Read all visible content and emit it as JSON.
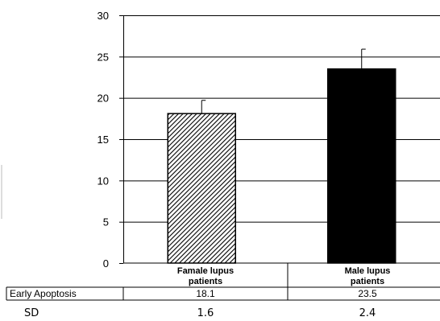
{
  "chart_data": {
    "type": "bar",
    "categories": [
      {
        "line1": "Famale lupus",
        "line2": "patients"
      },
      {
        "line1": "Male lupus",
        "line2": "patients"
      }
    ],
    "series": [
      {
        "name": "Early Apoptosis",
        "values": [
          18.1,
          23.5
        ],
        "value_labels": [
          "18.1",
          "23.5"
        ],
        "fills": [
          "hatched",
          "#000000"
        ]
      }
    ],
    "error_bars": [
      1.6,
      2.4
    ],
    "sd_label": "SD",
    "sd_value_labels": [
      "1.6",
      "2.4"
    ],
    "ylim": [
      0,
      30
    ],
    "yticks": [
      0,
      5,
      10,
      15,
      20,
      25,
      30
    ],
    "grid": true,
    "legend": "none"
  }
}
